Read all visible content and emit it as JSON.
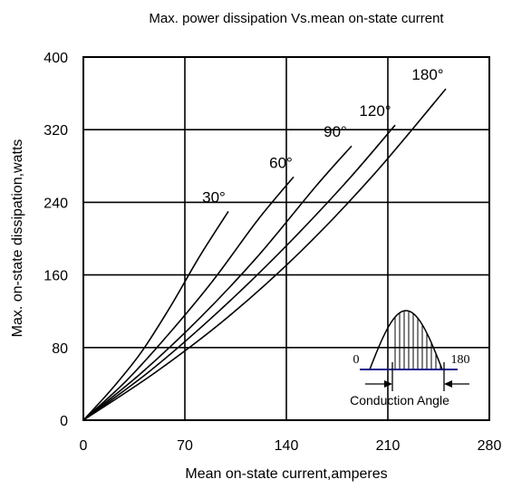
{
  "chart_data": {
    "type": "line",
    "title": "Max. power dissipation Vs.mean on-state current",
    "xlabel": "Mean on-state current,amperes",
    "ylabel": "Max. on-state dissipation,watts",
    "xlim": [
      0,
      280
    ],
    "ylim": [
      0,
      400
    ],
    "x_ticks": [
      "0",
      "70",
      "140",
      "210",
      "280"
    ],
    "y_ticks": [
      "0",
      "80",
      "160",
      "240",
      "320",
      "400"
    ],
    "grid": true,
    "series": [
      {
        "name": "30°",
        "x": [
          0,
          20,
          40,
          60,
          80,
          100
        ],
        "y": [
          0,
          35,
          75,
          125,
          180,
          230
        ]
      },
      {
        "name": "60°",
        "x": [
          0,
          30,
          60,
          90,
          120,
          145
        ],
        "y": [
          0,
          44,
          97,
          155,
          220,
          268
        ]
      },
      {
        "name": "90°",
        "x": [
          0,
          40,
          80,
          120,
          160,
          185
        ],
        "y": [
          0,
          52,
          112,
          180,
          257,
          302
        ]
      },
      {
        "name": "120°",
        "x": [
          0,
          45,
          90,
          135,
          180,
          215
        ],
        "y": [
          0,
          53,
          115,
          184,
          260,
          325
        ]
      },
      {
        "name": "180°",
        "x": [
          0,
          50,
          100,
          150,
          200,
          250
        ],
        "y": [
          0,
          53,
          114,
          186,
          270,
          365
        ]
      }
    ],
    "inset": {
      "start_label": "0",
      "end_label": "180",
      "caption": "Conduction Angle"
    }
  }
}
